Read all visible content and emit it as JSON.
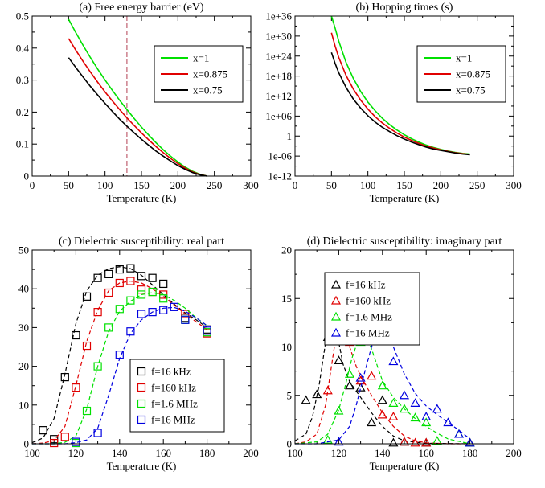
{
  "chart_data": [
    {
      "id": "a",
      "type": "line",
      "title": "(a) Free energy barrier (eV)",
      "xlabel": "Temperature (K)",
      "ylabel": "",
      "xlim": [
        0,
        300
      ],
      "ylim": [
        0,
        0.5
      ],
      "xticks": [
        "0",
        "50",
        "100",
        "150",
        "200",
        "250",
        "300"
      ],
      "yticks": [
        "0",
        "0.1",
        "0.2",
        "0.3",
        "0.4",
        "0.5"
      ],
      "legend_position": "top-right",
      "vline": {
        "x": 130,
        "color": "#cc7f8c",
        "style": "dashed"
      },
      "series": [
        {
          "name": "x=1",
          "color": "#00e000",
          "x": [
            50,
            60,
            70,
            80,
            90,
            100,
            110,
            120,
            130,
            140,
            150,
            160,
            170,
            180,
            190,
            200,
            210,
            220,
            230,
            240
          ],
          "y": [
            0.49,
            0.448,
            0.408,
            0.37,
            0.334,
            0.3,
            0.268,
            0.237,
            0.208,
            0.18,
            0.153,
            0.128,
            0.104,
            0.082,
            0.062,
            0.044,
            0.028,
            0.015,
            0.006,
            0.0
          ]
        },
        {
          "name": "x=0.875",
          "color": "#e00000",
          "x": [
            50,
            60,
            70,
            80,
            90,
            100,
            110,
            120,
            130,
            140,
            150,
            160,
            170,
            180,
            190,
            200,
            210,
            220,
            230,
            240
          ],
          "y": [
            0.43,
            0.393,
            0.358,
            0.325,
            0.293,
            0.263,
            0.235,
            0.208,
            0.182,
            0.158,
            0.135,
            0.113,
            0.092,
            0.073,
            0.055,
            0.039,
            0.025,
            0.013,
            0.005,
            0.0
          ]
        },
        {
          "name": "x=0.75",
          "color": "#000000",
          "x": [
            50,
            60,
            70,
            80,
            90,
            100,
            110,
            120,
            130,
            140,
            150,
            160,
            170,
            180,
            190,
            200,
            210,
            220,
            230,
            240
          ],
          "y": [
            0.37,
            0.339,
            0.309,
            0.28,
            0.253,
            0.227,
            0.202,
            0.178,
            0.156,
            0.135,
            0.115,
            0.096,
            0.078,
            0.062,
            0.047,
            0.033,
            0.021,
            0.011,
            0.004,
            0.0
          ]
        }
      ]
    },
    {
      "id": "b",
      "type": "line",
      "title": "(b) Hopping times (s)",
      "xlabel": "Temperature (K)",
      "ylabel": "",
      "xlim": [
        0,
        300
      ],
      "ylim": [
        -12,
        36
      ],
      "ylog": true,
      "xticks": [
        "0",
        "50",
        "100",
        "150",
        "200",
        "250",
        "300"
      ],
      "yticks": [
        "1e-12",
        "1e-06",
        "1",
        "1e+06",
        "1e+12",
        "1e+18",
        "1e+24",
        "1e+30",
        "1e+36"
      ],
      "legend_position": "top-right",
      "series": [
        {
          "name": "x=1",
          "color": "#00e000",
          "x": [
            50,
            55,
            60,
            70,
            80,
            90,
            100,
            110,
            120,
            130,
            140,
            150,
            160,
            170,
            180,
            190,
            200,
            210,
            220,
            230,
            240
          ],
          "y": [
            37.2,
            32.4,
            28.5,
            22.1,
            17.3,
            13.4,
            10.2,
            7.6,
            5.3,
            3.4,
            1.8,
            0.4,
            -0.8,
            -1.8,
            -2.7,
            -3.4,
            -4.0,
            -4.5,
            -4.9,
            -5.2,
            -5.4
          ]
        },
        {
          "name": "x=0.875",
          "color": "#e00000",
          "x": [
            50,
            55,
            60,
            70,
            80,
            90,
            100,
            110,
            120,
            130,
            140,
            150,
            160,
            170,
            180,
            190,
            200,
            210,
            220,
            230,
            240
          ],
          "y": [
            31.0,
            27.0,
            23.6,
            18.2,
            14.1,
            10.8,
            8.1,
            5.8,
            3.9,
            2.3,
            0.9,
            -0.3,
            -1.3,
            -2.2,
            -3.0,
            -3.6,
            -4.1,
            -4.6,
            -5.0,
            -5.3,
            -5.5
          ]
        },
        {
          "name": "x=0.75",
          "color": "#000000",
          "x": [
            50,
            55,
            60,
            70,
            80,
            90,
            100,
            110,
            120,
            130,
            140,
            150,
            160,
            170,
            180,
            190,
            200,
            210,
            220,
            230,
            240
          ],
          "y": [
            25.1,
            21.8,
            19.0,
            14.6,
            11.1,
            8.4,
            6.1,
            4.2,
            2.6,
            1.3,
            0.1,
            -0.9,
            -1.8,
            -2.6,
            -3.3,
            -3.9,
            -4.3,
            -4.7,
            -5.1,
            -5.4,
            -5.6
          ]
        }
      ]
    },
    {
      "id": "c",
      "type": "scatter",
      "title": "(c) Dielectric susceptibility: real part",
      "xlabel": "Temperature (K)",
      "ylabel": "",
      "xlim": [
        100,
        200
      ],
      "ylim": [
        0,
        50
      ],
      "xticks": [
        "100",
        "120",
        "140",
        "160",
        "180",
        "200"
      ],
      "yticks": [
        "0",
        "10",
        "20",
        "30",
        "40",
        "50"
      ],
      "marker": "square",
      "legend_position": "bottom-right",
      "series": [
        {
          "name": "f=16 kHz",
          "color": "#000000",
          "x": [
            105,
            110,
            115,
            120,
            125,
            130,
            135,
            140,
            145,
            150,
            155,
            160,
            170,
            180
          ],
          "y": [
            3.5,
            1.2,
            17.2,
            28.0,
            38.0,
            42.8,
            43.8,
            45.0,
            45.3,
            43.3,
            42.8,
            41.3,
            32.5,
            29.5
          ],
          "fit_x": [
            100,
            105,
            110,
            115,
            120,
            125,
            130,
            135,
            140,
            145,
            150,
            155,
            160,
            165,
            170,
            175,
            180
          ],
          "fit_y": [
            0.3,
            1.5,
            6.5,
            18.0,
            31.0,
            39.5,
            43.5,
            45.2,
            45.7,
            45.2,
            43.5,
            41.0,
            38.5,
            36.0,
            33.8,
            32.0,
            30.0
          ]
        },
        {
          "name": "f=160 kHz",
          "color": "#e00000",
          "x": [
            110,
            115,
            120,
            125,
            130,
            135,
            140,
            145,
            150,
            155,
            160,
            170,
            180
          ],
          "y": [
            0.2,
            1.8,
            14.5,
            25.3,
            34.0,
            39.0,
            41.5,
            42.0,
            39.8,
            39.2,
            38.5,
            33.5,
            28.5
          ],
          "fit_x": [
            100,
            105,
            110,
            115,
            120,
            125,
            130,
            135,
            140,
            145,
            150,
            155,
            160,
            165,
            170,
            175,
            180
          ],
          "fit_y": [
            0.0,
            0.2,
            0.8,
            4.5,
            15.0,
            26.5,
            34.5,
            39.5,
            41.5,
            42.0,
            41.5,
            40.0,
            38.0,
            35.8,
            33.5,
            31.5,
            29.5
          ]
        },
        {
          "name": "f=1.6 MHz",
          "color": "#00e000",
          "x": [
            120,
            125,
            130,
            135,
            140,
            145,
            150,
            155,
            160,
            170,
            180
          ],
          "y": [
            0.2,
            8.5,
            20.0,
            30.0,
            34.8,
            37.0,
            38.5,
            39.2,
            37.5,
            32.0,
            28.8
          ],
          "fit_x": [
            100,
            110,
            115,
            120,
            125,
            130,
            135,
            140,
            145,
            150,
            155,
            160,
            165,
            170,
            175,
            180
          ],
          "fit_y": [
            0.0,
            0.0,
            0.4,
            2.0,
            9.0,
            20.0,
            29.0,
            34.2,
            36.8,
            38.5,
            39.0,
            38.5,
            37.0,
            35.0,
            32.5,
            30.5
          ]
        },
        {
          "name": "f=16 MHz",
          "color": "#0000e0",
          "x": [
            120,
            130,
            140,
            145,
            150,
            155,
            160,
            165,
            170,
            180
          ],
          "y": [
            0.5,
            2.8,
            23.0,
            29.0,
            33.5,
            34.0,
            34.5,
            35.3,
            32.0,
            29.2
          ],
          "fit_x": [
            100,
            115,
            120,
            125,
            130,
            135,
            140,
            145,
            150,
            155,
            160,
            165,
            170,
            175,
            180
          ],
          "fit_y": [
            0.0,
            0.0,
            0.3,
            1.0,
            4.0,
            12.5,
            22.0,
            28.5,
            32.0,
            34.0,
            35.0,
            35.2,
            34.2,
            32.5,
            30.5
          ]
        }
      ]
    },
    {
      "id": "d",
      "type": "scatter",
      "title": "(d) Dielectric susceptibility: imaginary part",
      "xlabel": "Temperature (K)",
      "ylabel": "",
      "xlim": [
        100,
        200
      ],
      "ylim": [
        0,
        20
      ],
      "xticks": [
        "100",
        "120",
        "140",
        "160",
        "180",
        "200"
      ],
      "yticks": [
        "0",
        "5",
        "10",
        "15",
        "20"
      ],
      "marker": "triangle",
      "legend_position": "top-left",
      "series": [
        {
          "name": "f=16 kHz",
          "color": "#000000",
          "x": [
            105,
            110,
            115,
            120,
            125,
            130,
            135,
            140,
            145,
            150,
            160,
            180
          ],
          "y": [
            4.5,
            5.1,
            11.0,
            8.6,
            6.0,
            5.8,
            2.2,
            4.5,
            0.1,
            0.2,
            0.1,
            0.1
          ],
          "fit_x": [
            100,
            105,
            108,
            111,
            114,
            116,
            117,
            118,
            120,
            122,
            125,
            130,
            135,
            140,
            145,
            150,
            160,
            180
          ],
          "fit_y": [
            0.3,
            1.0,
            2.8,
            6.0,
            10.5,
            13.5,
            13.8,
            13.0,
            10.5,
            8.2,
            6.4,
            4.8,
            3.2,
            1.8,
            0.8,
            0.3,
            0.05,
            0.0
          ]
        },
        {
          "name": "f=160 kHz",
          "color": "#e00000",
          "x": [
            115,
            120,
            125,
            130,
            135,
            140,
            145,
            150,
            155,
            160,
            180
          ],
          "y": [
            5.5,
            12.5,
            10.5,
            6.5,
            7.0,
            3.0,
            2.8,
            0.2,
            0.1,
            0.1,
            0.1
          ],
          "fit_x": [
            100,
            105,
            110,
            114,
            117,
            119,
            120,
            122,
            125,
            128,
            130,
            135,
            140,
            145,
            150,
            155,
            160,
            170,
            180
          ],
          "fit_y": [
            0.0,
            0.2,
            1.0,
            4.0,
            8.5,
            11.5,
            12.3,
            11.8,
            10.0,
            8.0,
            7.0,
            5.0,
            3.2,
            1.8,
            0.8,
            0.3,
            0.1,
            0.0,
            0.0
          ]
        },
        {
          "name": "f=1.6 MHz",
          "color": "#00e000",
          "x": [
            115,
            120,
            125,
            130,
            135,
            140,
            145,
            150,
            155,
            160,
            165,
            175,
            180
          ],
          "y": [
            0.4,
            3.4,
            7.2,
            10.5,
            11.5,
            6.0,
            4.2,
            3.6,
            2.7,
            2.2,
            0.3,
            1.0,
            0.1
          ],
          "fit_x": [
            100,
            110,
            115,
            120,
            123,
            126,
            129,
            131,
            133,
            135,
            138,
            140,
            145,
            150,
            155,
            160,
            165,
            170,
            180
          ],
          "fit_y": [
            0.0,
            0.2,
            1.0,
            3.5,
            6.0,
            8.8,
            10.8,
            11.2,
            10.8,
            9.8,
            7.8,
            6.5,
            4.8,
            3.6,
            2.6,
            1.8,
            1.1,
            0.5,
            0.0
          ]
        },
        {
          "name": "f=16 MHz",
          "color": "#0000e0",
          "x": [
            120,
            130,
            135,
            140,
            145,
            150,
            155,
            160,
            165,
            170,
            175,
            180
          ],
          "y": [
            0.2,
            6.8,
            11.5,
            11.8,
            8.5,
            5.0,
            4.2,
            2.8,
            3.6,
            2.2,
            1.0,
            0.1
          ],
          "fit_x": [
            100,
            110,
            120,
            125,
            128,
            132,
            135,
            138,
            140,
            142,
            145,
            150,
            155,
            160,
            165,
            170,
            175,
            180
          ],
          "fit_y": [
            0.0,
            0.0,
            0.4,
            1.8,
            4.0,
            7.5,
            10.0,
            11.8,
            12.2,
            11.8,
            10.0,
            7.2,
            5.2,
            3.9,
            3.0,
            2.2,
            1.4,
            0.5
          ]
        }
      ]
    }
  ]
}
